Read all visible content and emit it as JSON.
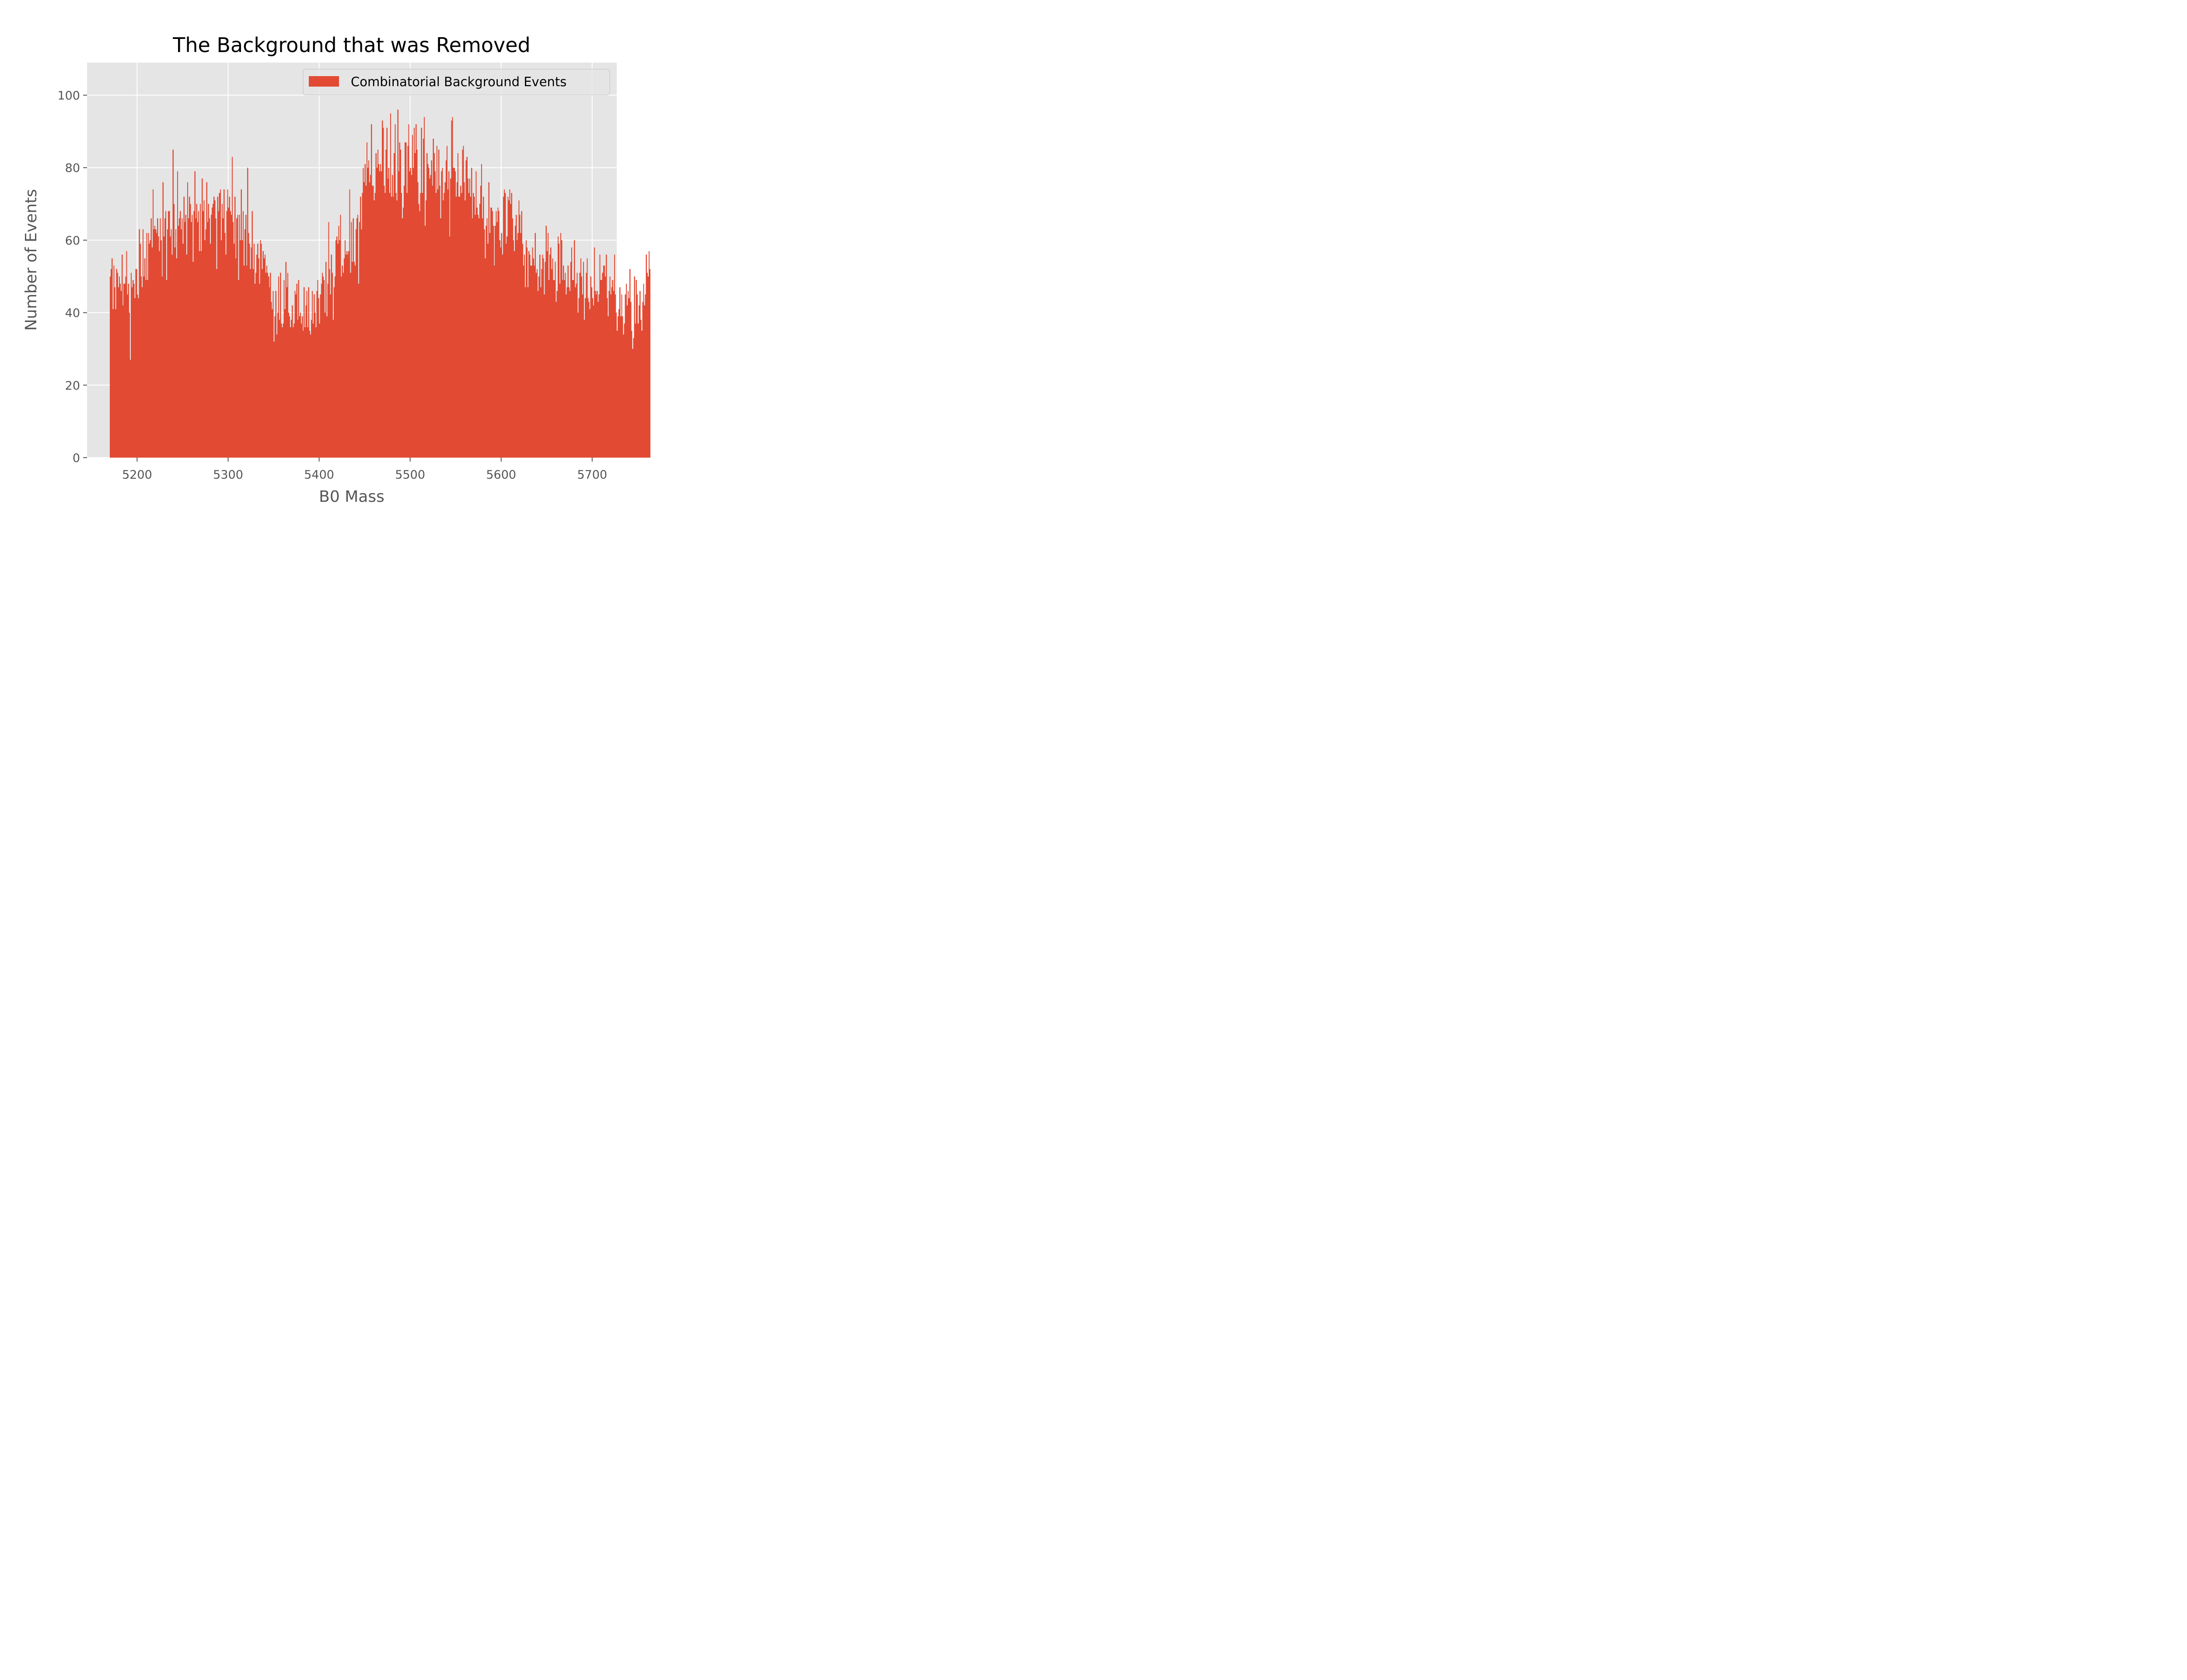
{
  "chart_data": {
    "type": "bar",
    "title": "The Background that was Removed",
    "xlabel": "B0 Mass",
    "ylabel": "Number of Events",
    "xlim": [
      5145,
      5727
    ],
    "ylim": [
      0,
      109
    ],
    "grid": true,
    "style": "ggplot",
    "legend_position": "upper right",
    "bin_range": [
      5170,
      5700
    ],
    "bin_width": 1,
    "series": [
      {
        "name": "Combinatorial Background Events",
        "color": "#E24A33",
        "values": [
          50,
          52,
          55,
          41,
          53,
          47,
          41,
          52,
          51,
          47,
          50,
          48,
          46,
          56,
          42,
          48,
          48,
          50,
          57,
          45,
          48,
          40,
          27,
          51,
          47,
          49,
          48,
          44,
          52,
          52,
          45,
          44,
          63,
          59,
          50,
          47,
          63,
          50,
          55,
          49,
          62,
          49,
          62,
          59,
          60,
          66,
          58,
          74,
          63,
          64,
          63,
          62,
          66,
          61,
          57,
          66,
          60,
          50,
          76,
          61,
          66,
          68,
          49,
          63,
          68,
          68,
          61,
          63,
          56,
          85,
          70,
          58,
          63,
          55,
          79,
          64,
          66,
          68,
          63,
          66,
          59,
          72,
          65,
          67,
          56,
          76,
          66,
          72,
          70,
          65,
          67,
          54,
          68,
          79,
          66,
          70,
          65,
          68,
          57,
          70,
          57,
          77,
          68,
          71,
          60,
          63,
          76,
          65,
          70,
          66,
          59,
          67,
          69,
          70,
          72,
          71,
          66,
          52,
          72,
          68,
          73,
          74,
          60,
          70,
          66,
          74,
          62,
          56,
          68,
          74,
          69,
          72,
          68,
          67,
          83,
          65,
          59,
          72,
          55,
          66,
          67,
          49,
          67,
          60,
          74,
          60,
          68,
          53,
          63,
          67,
          53,
          80,
          62,
          59,
          52,
          58,
          68,
          52,
          59,
          48,
          51,
          56,
          59,
          55,
          48,
          60,
          59,
          52,
          57,
          55,
          56,
          51,
          53,
          51,
          50,
          47,
          51,
          43,
          41,
          46,
          32,
          39,
          46,
          34,
          40,
          50,
          38,
          51,
          37,
          36,
          37,
          49,
          41,
          54,
          47,
          51,
          40,
          39,
          36,
          38,
          42,
          36,
          37,
          46,
          45,
          48,
          38,
          49,
          39,
          40,
          37,
          39,
          35,
          47,
          36,
          42,
          46,
          36,
          47,
          35,
          34,
          38,
          46,
          37,
          45,
          40,
          36,
          46,
          49,
          44,
          37,
          45,
          48,
          51,
          50,
          49,
          40,
          54,
          39,
          48,
          65,
          52,
          45,
          56,
          51,
          38,
          47,
          50,
          60,
          61,
          59,
          64,
          60,
          67,
          50,
          53,
          51,
          55,
          60,
          56,
          57,
          56,
          57,
          74,
          51,
          65,
          54,
          66,
          54,
          53,
          63,
          66,
          67,
          48,
          65,
          72,
          63,
          73,
          80,
          76,
          81,
          75,
          87,
          80,
          82,
          76,
          78,
          92,
          75,
          75,
          71,
          73,
          84,
          80,
          85,
          81,
          79,
          81,
          79,
          93,
          91,
          75,
          73,
          85,
          91,
          77,
          80,
          73,
          95,
          72,
          78,
          72,
          84,
          92,
          73,
          71,
          96,
          79,
          87,
          85,
          73,
          66,
          69,
          75,
          87,
          87,
          73,
          86,
          92,
          79,
          80,
          78,
          89,
          80,
          91,
          84,
          92,
          85,
          76,
          70,
          68,
          73,
          91,
          73,
          88,
          94,
          64,
          71,
          84,
          81,
          80,
          77,
          78,
          82,
          75,
          88,
          84,
          79,
          73,
          86,
          74,
          85,
          75,
          66,
          79,
          80,
          71,
          73,
          76,
          82,
          86,
          74,
          79,
          61,
          77,
          93,
          94,
          80,
          80,
          79,
          72,
          76,
          84,
          72,
          72,
          75,
          73,
          85,
          86,
          76,
          71,
          82,
          83,
          77,
          73,
          77,
          72,
          80,
          66,
          73,
          72,
          67,
          79,
          69,
          67,
          66,
          70,
          75,
          81,
          66,
          72,
          63,
          55,
          64,
          66,
          59,
          76,
          62,
          69,
          69,
          68,
          64,
          53,
          64,
          68,
          65,
          69,
          68,
          60,
          58,
          62,
          56,
          72,
          74,
          73,
          59,
          61,
          72,
          71,
          74,
          70,
          73,
          66,
          60,
          57,
          64,
          67,
          60,
          62,
          71,
          67,
          62,
          68,
          59,
          53,
          56,
          47,
          60,
          58,
          47,
          57,
          56,
          53,
          53,
          58,
          55,
          53,
          62,
          51,
          52,
          46,
          50,
          56,
          47,
          52,
          56,
          55,
          45,
          54,
          64,
          57,
          62,
          49,
          56,
          58,
          52,
          55,
          49,
          49,
          54,
          43,
          46,
          61,
          59,
          48,
          62,
          60,
          49,
          53,
          49,
          51,
          45,
          47,
          53,
          47,
          46,
          54,
          58,
          49,
          49,
          60,
          47,
          48,
          51,
          40,
          44,
          51,
          55,
          50,
          45,
          54,
          38,
          44,
          51,
          55,
          44,
          43,
          41,
          50,
          47,
          44,
          42,
          58,
          46,
          45,
          46,
          43,
          45,
          56,
          49,
          49,
          51,
          53,
          53,
          50,
          56,
          44,
          39,
          46,
          50,
          45,
          47,
          49,
          46,
          56,
          45,
          40,
          35,
          39,
          41,
          47,
          39,
          45,
          39,
          34,
          37,
          45,
          48,
          42,
          46,
          44,
          52,
          43,
          35,
          30,
          33,
          50,
          37,
          49,
          45,
          37,
          42,
          46,
          38,
          35,
          43,
          48,
          42,
          45,
          56,
          51,
          50,
          57,
          52
        ]
      }
    ],
    "x_ticks": [
      "5200",
      "5300",
      "5400",
      "5500",
      "5600",
      "5700"
    ],
    "y_ticks": [
      "0",
      "20",
      "40",
      "60",
      "80",
      "100"
    ]
  },
  "colors": {
    "figure_background": "#FFFFFF",
    "axes_background": "#E5E5E5",
    "grid": "#FFFFFF",
    "tick_text": "#555555",
    "bar": "#E24A33"
  }
}
